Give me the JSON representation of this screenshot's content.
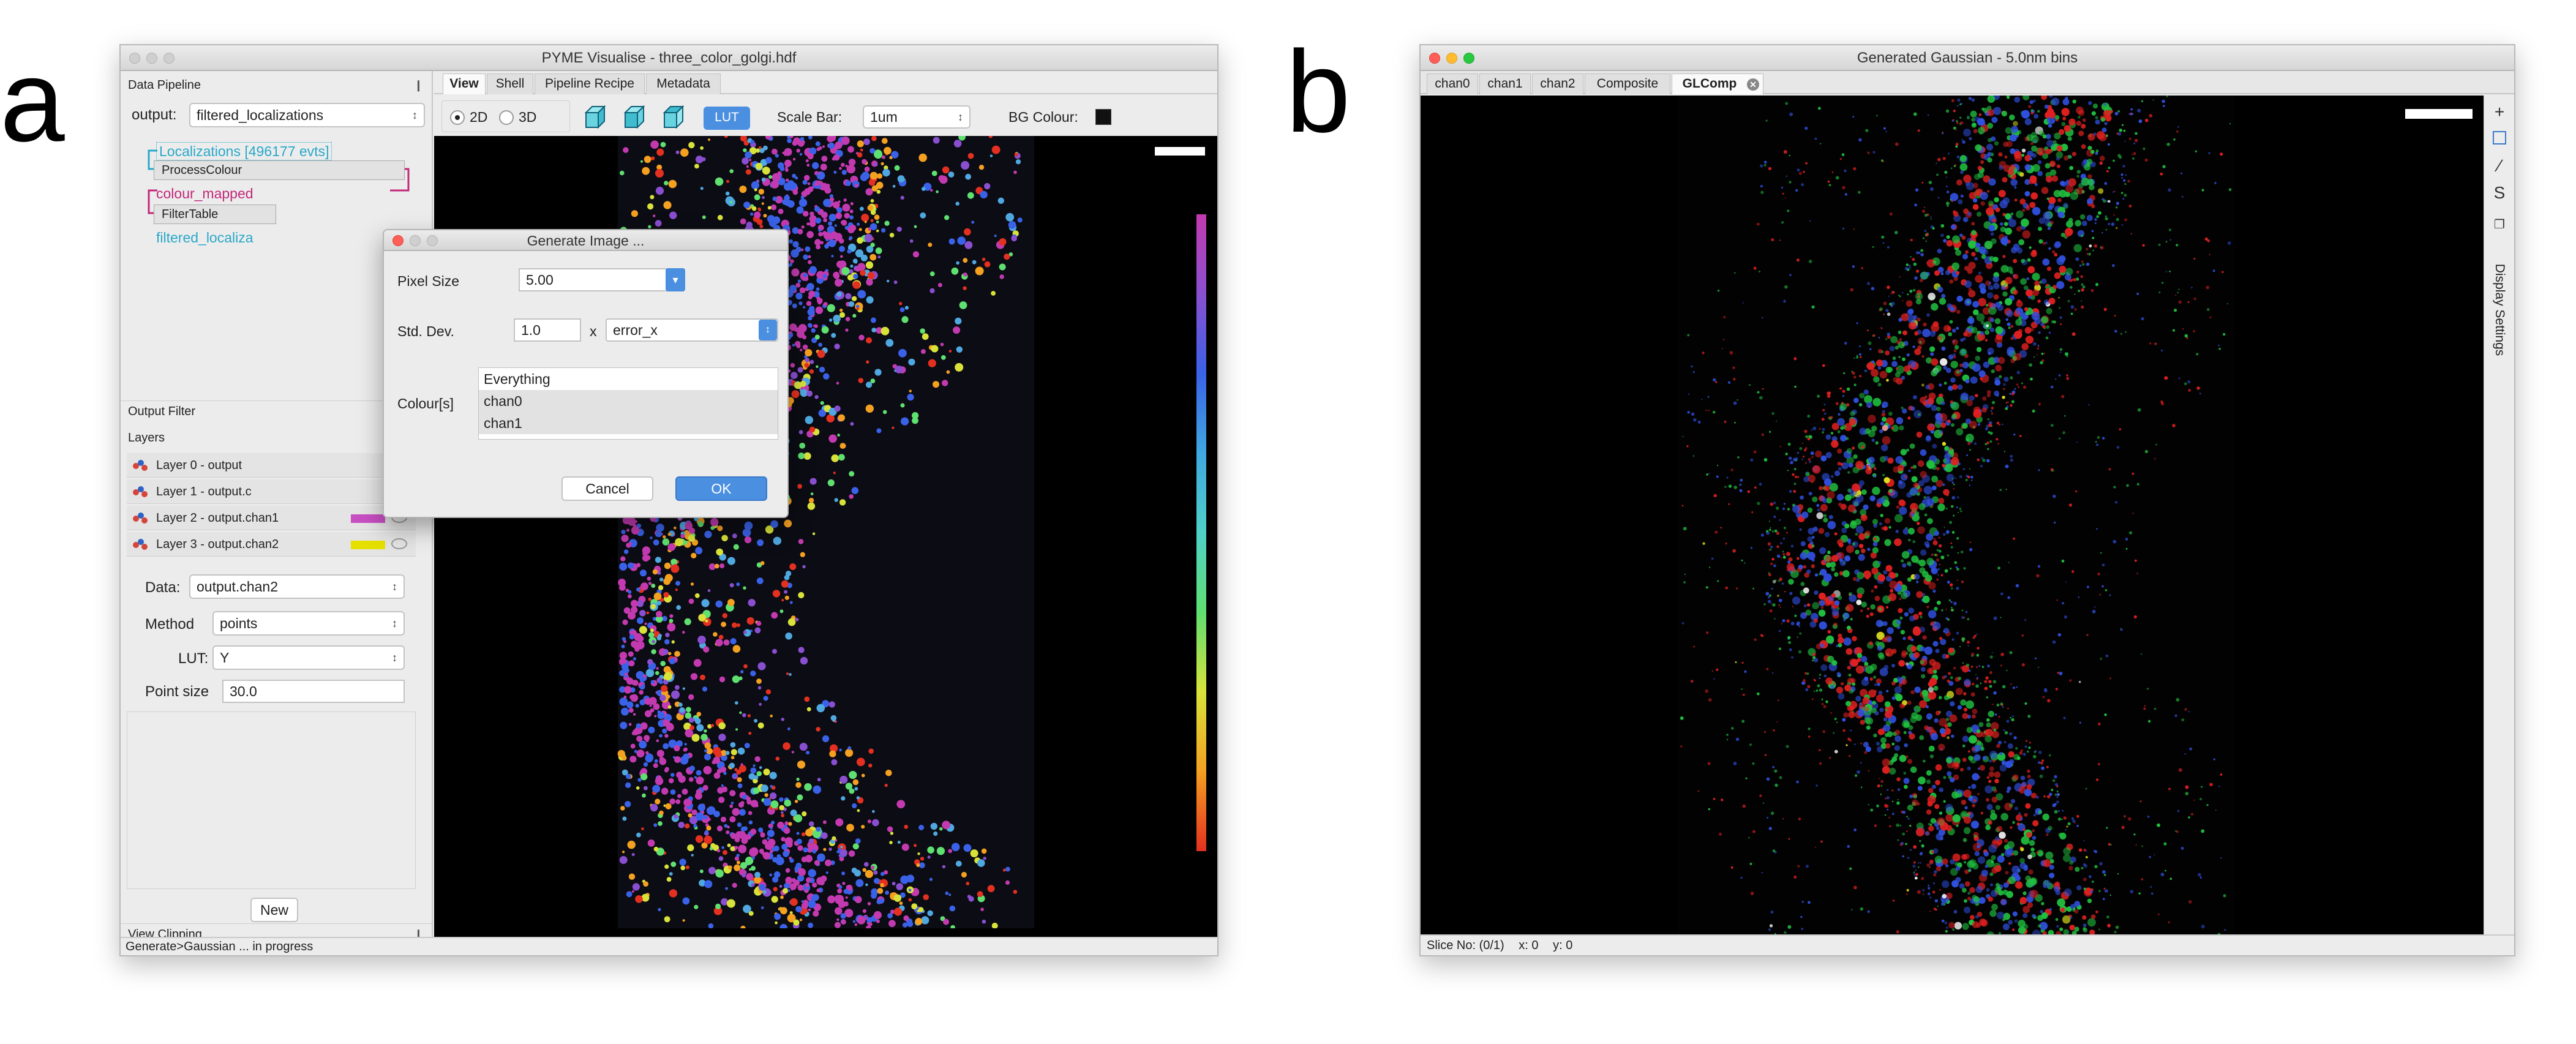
{
  "panel_labels": {
    "a": "a",
    "b": "b"
  },
  "window_a": {
    "title": "PYME Visualise - three_color_golgi.hdf",
    "sidebar": {
      "pipeline_header": "Data Pipeline",
      "output_label": "output:",
      "output_value": "filtered_localizations",
      "nodes": {
        "localizations": "Localizations [496177 evts]",
        "process_colour": "ProcessColour",
        "colour_mapped": "colour_mapped",
        "filter_table": "FilterTable",
        "filtered": "filtered_localiza"
      },
      "output_filter_header": "Output Filter",
      "layers_header": "Layers",
      "layers": [
        {
          "label": "Layer 0 - output",
          "swatch": ""
        },
        {
          "label": "Layer 1 - output.c",
          "swatch": ""
        },
        {
          "label": "Layer 2 - output.chan1",
          "swatch": "#c84fc3"
        },
        {
          "label": "Layer 3 - output.chan2",
          "swatch": "#e6e000"
        }
      ],
      "props": {
        "data_label": "Data:",
        "data_value": "output.chan2",
        "method_label": "Method",
        "method_value": "points",
        "lut_label": "LUT:",
        "lut_value": "Y",
        "point_size_label": "Point size",
        "point_size_value": "30.0"
      },
      "new_button": "New",
      "view_clipping_header": "View Clipping"
    },
    "tabs": [
      {
        "label": "View",
        "active": true
      },
      {
        "label": "Shell",
        "active": false
      },
      {
        "label": "Pipeline Recipe",
        "active": false
      },
      {
        "label": "Metadata",
        "active": false
      }
    ],
    "toolbar": {
      "mode_2d": "2D",
      "mode_3d": "3D",
      "lut_button": "LUT",
      "scale_bar_label": "Scale Bar:",
      "scale_bar_value": "1um",
      "bg_colour_label": "BG Colour:",
      "bg_colour": "#111111"
    },
    "status": "Generate>Gaussian ... in progress",
    "dialog": {
      "title": "Generate Image ...",
      "pixel_size_label": "Pixel Size",
      "pixel_size_value": "5.00",
      "std_dev_label": "Std. Dev.",
      "std_dev_value": "1.0",
      "times": "x",
      "std_dev_source": "error_x",
      "colours_label": "Colour[s]",
      "colours": [
        "Everything",
        "chan0",
        "chan1"
      ],
      "cancel": "Cancel",
      "ok": "OK"
    }
  },
  "window_b": {
    "title": "Generated Gaussian - 5.0nm bins",
    "tabs": [
      {
        "label": "chan0",
        "active": false
      },
      {
        "label": "chan1",
        "active": false
      },
      {
        "label": "chan2",
        "active": false
      },
      {
        "label": "Composite",
        "active": false
      },
      {
        "label": "GLComp",
        "active": true
      }
    ],
    "display_settings": "Display Settings",
    "status": {
      "slice": "Slice No: (0/1)",
      "x": "x: 0",
      "y": "y: 0"
    }
  },
  "colors": {
    "pipeline_cyan": "#2aa8c9",
    "pipeline_magenta": "#c2287a",
    "accent_blue": "#4a8fe0"
  }
}
